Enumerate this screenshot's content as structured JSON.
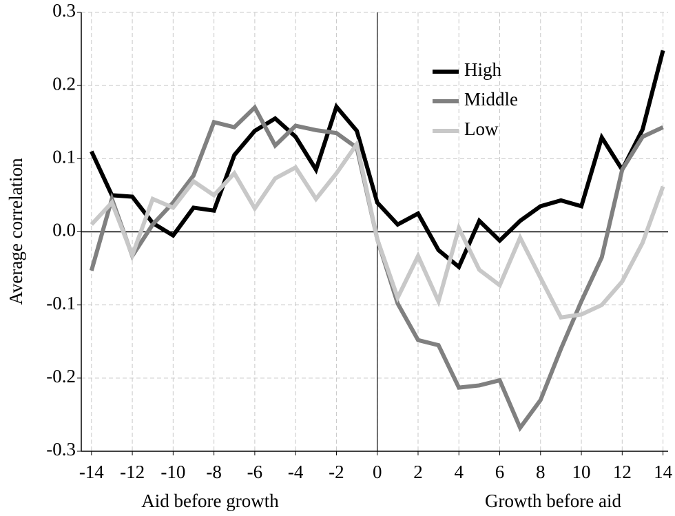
{
  "chart_data": {
    "type": "line",
    "ylabel": "Average correlation",
    "xlabels": [
      "Aid before growth",
      "Growth before aid"
    ],
    "x": [
      -14,
      -13,
      -12,
      -11,
      -10,
      -9,
      -8,
      -7,
      -6,
      -5,
      -4,
      -3,
      -2,
      -1,
      0,
      1,
      2,
      3,
      4,
      5,
      6,
      7,
      8,
      9,
      10,
      11,
      12,
      13,
      14
    ],
    "series": [
      {
        "name": "High",
        "color": "#000000",
        "values": [
          0.11,
          0.05,
          0.048,
          0.012,
          -0.005,
          0.033,
          0.029,
          0.105,
          0.138,
          0.155,
          0.13,
          0.085,
          0.171,
          0.138,
          0.04,
          0.01,
          0.025,
          -0.025,
          -0.048,
          0.015,
          -0.012,
          0.015,
          0.035,
          0.043,
          0.035,
          0.129,
          0.085,
          0.14,
          0.248
        ]
      },
      {
        "name": "Middle",
        "color": "#808080",
        "values": [
          -0.053,
          0.045,
          -0.033,
          0.01,
          0.04,
          0.077,
          0.15,
          0.143,
          0.17,
          0.118,
          0.145,
          0.139,
          0.135,
          0.115,
          -0.01,
          -0.098,
          -0.148,
          -0.155,
          -0.213,
          -0.21,
          -0.203,
          -0.268,
          -0.23,
          -0.16,
          -0.095,
          -0.035,
          0.085,
          0.13,
          0.143
        ]
      },
      {
        "name": "Low",
        "color": "#c8c8c8",
        "values": [
          0.01,
          0.04,
          -0.032,
          0.045,
          0.033,
          0.069,
          0.05,
          0.08,
          0.032,
          0.073,
          0.088,
          0.045,
          0.08,
          0.12,
          -0.01,
          -0.09,
          -0.033,
          -0.095,
          0.005,
          -0.052,
          -0.073,
          -0.008,
          -0.063,
          -0.117,
          -0.113,
          -0.1,
          -0.068,
          -0.015,
          0.062
        ]
      }
    ],
    "xlim": [
      -14.5,
      14.25
    ],
    "ylim": [
      -0.3,
      0.3
    ],
    "xticks": [
      -14,
      -12,
      -10,
      -8,
      -6,
      -4,
      -2,
      0,
      2,
      4,
      6,
      8,
      10,
      12,
      14
    ],
    "yticks": [
      -0.3,
      -0.2,
      -0.1,
      {
        "value": 0,
        "label": "0.0"
      },
      0.1,
      0.2,
      0.3
    ],
    "grid": true,
    "legend": "upper right"
  }
}
